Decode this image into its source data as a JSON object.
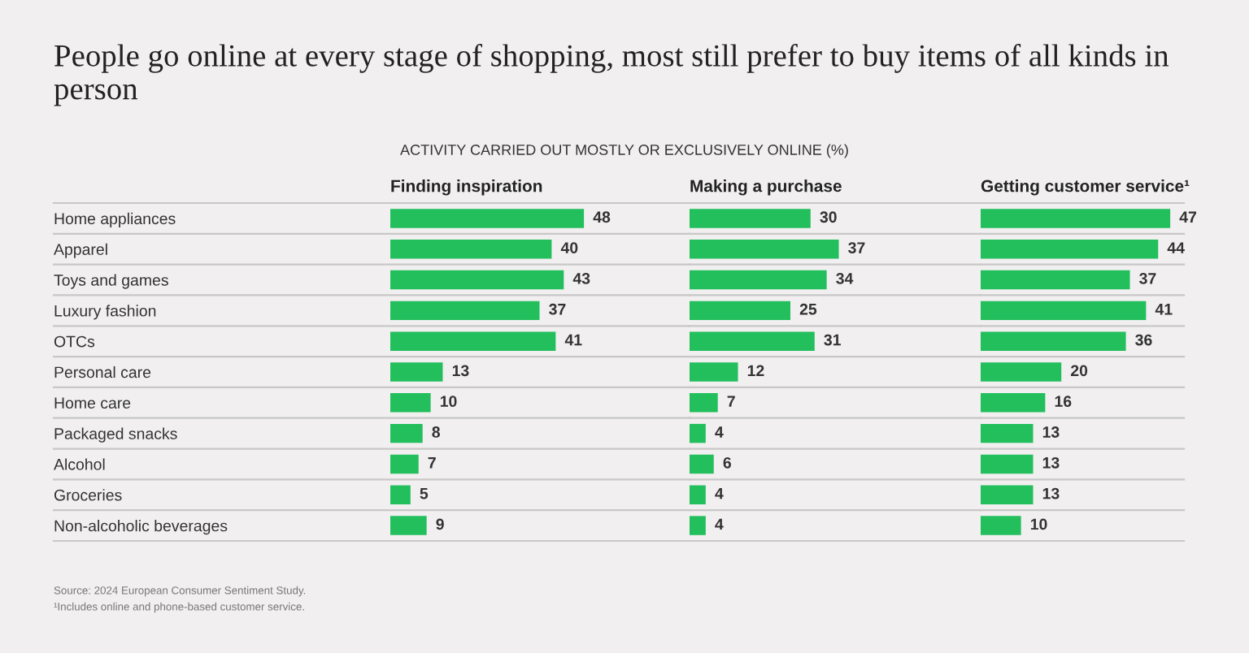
{
  "chart_data": [
    {
      "type": "bar",
      "orientation": "horizontal",
      "title": "People go online at every stage of shopping, most still prefer to buy items of all kinds in person",
      "subtitle": "ACTIVITY CARRIED OUT MOSTLY OR EXCLUSIVELY ONLINE (%)",
      "xlabel": "Finding inspiration",
      "categories": [
        "Home appliances",
        "Apparel",
        "Toys and games",
        "Luxury fashion",
        "OTCs",
        "Personal care",
        "Home care",
        "Packaged snacks",
        "Alcohol",
        "Groceries",
        "Non-alcoholic beverages"
      ],
      "values": [
        48,
        40,
        43,
        37,
        41,
        13,
        10,
        8,
        7,
        5,
        9
      ],
      "color": "#22bf5c",
      "data_labels": true,
      "grid": "y",
      "tick_labels": "y",
      "annotations": [
        "Source: 2024 European Consumer Sentiment Study.",
        "¹Includes online and phone-based customer service."
      ]
    },
    {
      "type": "bar",
      "orientation": "horizontal",
      "xlabel": "Making a purchase",
      "categories": [
        null,
        null,
        null,
        null,
        null,
        null,
        null,
        null,
        null,
        null,
        null
      ],
      "values": [
        30,
        37,
        34,
        25,
        31,
        12,
        7,
        4,
        6,
        4,
        4
      ],
      "color": "#22bf5c",
      "data_labels": true,
      "grid": "y"
    },
    {
      "type": "bar",
      "orientation": "horizontal",
      "xlabel": "Getting customer service¹",
      "categories": [
        null,
        null,
        null,
        null,
        null,
        null,
        null,
        null,
        null,
        null,
        null
      ],
      "values": [
        47,
        44,
        37,
        41,
        36,
        20,
        16,
        13,
        13,
        13,
        10
      ],
      "color": "#22bf5c",
      "data_labels": true,
      "grid": "y"
    }
  ]
}
